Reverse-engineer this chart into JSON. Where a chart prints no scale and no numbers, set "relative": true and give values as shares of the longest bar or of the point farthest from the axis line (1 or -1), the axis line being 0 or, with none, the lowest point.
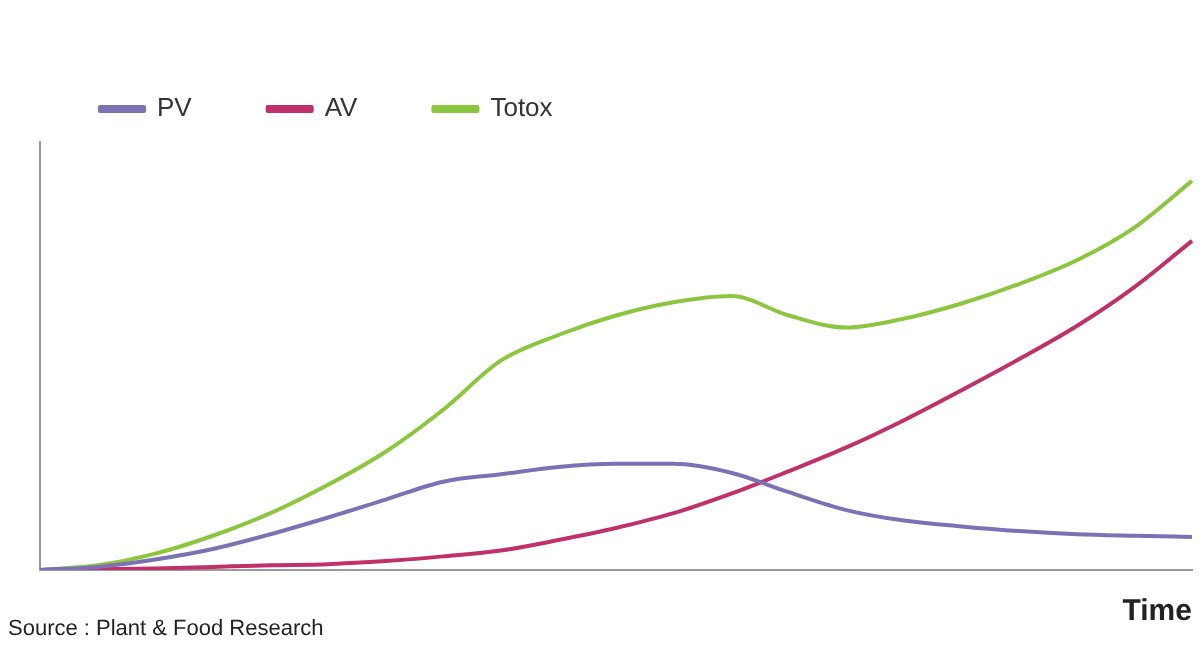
{
  "chart_data": {
    "type": "line",
    "relative": true,
    "xlabel": "Time",
    "legend": "top left",
    "grid": false,
    "marker": "none",
    "line_style": "solid",
    "categories": [
      null,
      null,
      null,
      null,
      null,
      null,
      null,
      null,
      null,
      null,
      null,
      null,
      null,
      null,
      null,
      null,
      null,
      null,
      null,
      null,
      null
    ],
    "series": [
      {
        "name": "PV",
        "color": "#7b72b5",
        "values": [
          0,
          0.008,
          0.027,
          0.054,
          0.092,
          0.135,
          0.181,
          0.227,
          0.246,
          0.265,
          0.273,
          0.273,
          0.25,
          0.2,
          0.154,
          0.127,
          0.112,
          0.1,
          0.092,
          0.088,
          0.085
        ]
      },
      {
        "name": "AV",
        "color": "#c0306a",
        "values": [
          0,
          0.002,
          0.004,
          0.008,
          0.012,
          0.015,
          0.023,
          0.035,
          0.05,
          0.077,
          0.108,
          0.146,
          0.196,
          0.254,
          0.315,
          0.385,
          0.462,
          0.542,
          0.627,
          0.727,
          0.846
        ]
      },
      {
        "name": "Totox",
        "color": "#8cc63f",
        "values": [
          0,
          0.012,
          0.042,
          0.088,
          0.146,
          0.219,
          0.304,
          0.412,
          0.538,
          0.604,
          0.654,
          0.688,
          0.704,
          0.654,
          0.623,
          0.646,
          0.685,
          0.735,
          0.796,
          0.88,
          1
        ]
      }
    ],
    "annotations": [
      "Source : Plant & Food Research"
    ]
  }
}
